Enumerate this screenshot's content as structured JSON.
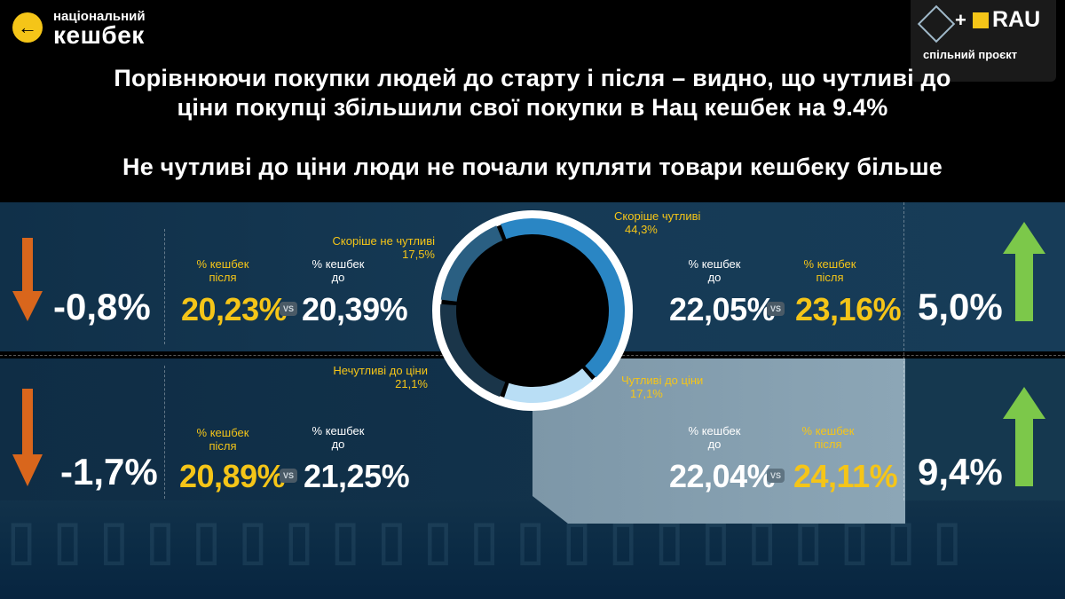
{
  "brand": {
    "line1": "національний",
    "line2": "кешбек"
  },
  "partner": {
    "logo_text": "RAU",
    "caption": "спільний проєкт"
  },
  "headline": {
    "line1": "Порівнюючи покупки людей до старту і після – видно, що чутливі до",
    "line2": "ціни покупці збільшили свої покупки в Нац кешбек на 9.4%",
    "line3": "Не чутливі до ціни люди не почали купляти товари кешбеку більше"
  },
  "donut": {
    "segments": [
      {
        "label": "Скоріше чутливі",
        "value": "44,3%",
        "share": 44.3,
        "color": "#2a86c4"
      },
      {
        "label": "Чутливі до ціни",
        "value": "17,1%",
        "share": 17.1,
        "color": "#b9def5"
      },
      {
        "label": "Нечутливі до ціни",
        "value": "21,1%",
        "share": 21.1,
        "color": "#1a3549"
      },
      {
        "label": "Скоріше не чутливі",
        "value": "17,5%",
        "share": 17.5,
        "color": "#2a5f82"
      }
    ]
  },
  "rows": [
    {
      "change": "-0,8%",
      "direction": "down",
      "after_label": "% кешбек\nпісля",
      "after_value": "20,23%",
      "before_label": "% кешбек\nдо",
      "before_value": "20,39%"
    },
    {
      "change": "-1,7%",
      "direction": "down",
      "after_label": "% кешбек\nпісля",
      "after_value": "20,89%",
      "before_label": "% кешбек\nдо",
      "before_value": "21,25%"
    },
    {
      "change": "5,0%",
      "direction": "up",
      "before_label": "% кешбек\nдо",
      "before_value": "22,05%",
      "after_label": "% кешбек\nпісля",
      "after_value": "23,16%"
    },
    {
      "change": "9,4%",
      "direction": "up",
      "before_label": "% кешбек\nдо",
      "before_value": "22,04%",
      "after_label": "% кешбек\nпісля",
      "after_value": "24,11%"
    }
  ],
  "vs_label": "VS",
  "colors": {
    "accent": "#f5c518",
    "down": "#d9661c",
    "up": "#7cc84a"
  }
}
